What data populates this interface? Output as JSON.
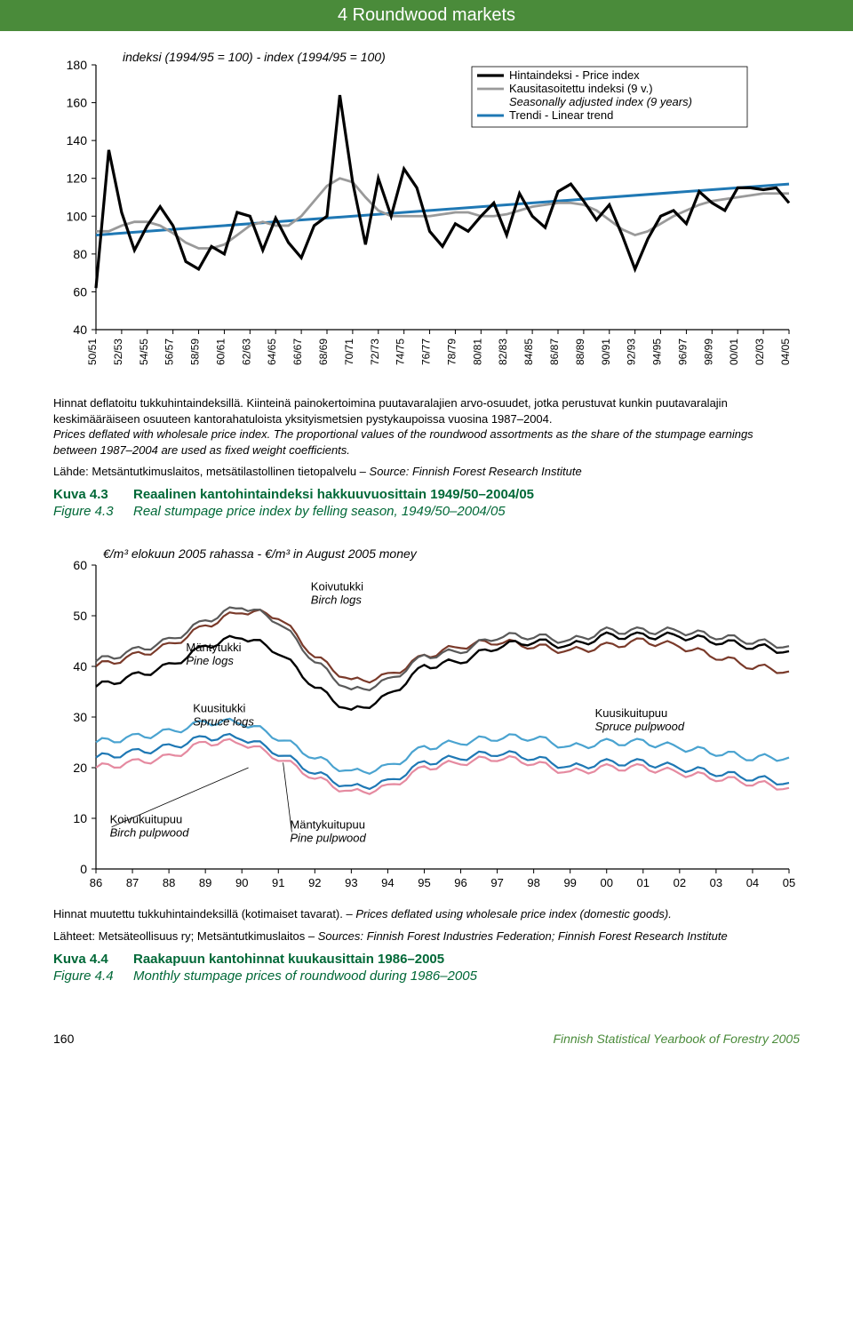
{
  "header": {
    "title": "4 Roundwood markets"
  },
  "chart1": {
    "type": "line",
    "index_label": "indeksi (1994/95 = 100) - index (1994/95 = 100)",
    "legend": {
      "price": "Hintaindeksi - Price index",
      "seasonal_fi": "Kausitasoitettu indeksi (9 v.)",
      "seasonal_en": "Seasonally adjusted index (9 years)",
      "trend": "Trendi - Linear trend"
    },
    "ylim": [
      40,
      180
    ],
    "ytick_step": 20,
    "background_color": "#ffffff",
    "xlabels": [
      "50/51",
      "52/53",
      "54/55",
      "56/57",
      "58/59",
      "60/61",
      "62/63",
      "64/65",
      "66/67",
      "68/69",
      "70/71",
      "72/73",
      "74/75",
      "76/77",
      "78/79",
      "80/81",
      "82/83",
      "84/85",
      "86/87",
      "88/89",
      "90/91",
      "92/93",
      "94/95",
      "96/97",
      "98/99",
      "00/01",
      "02/03",
      "04/05"
    ],
    "series": {
      "price": {
        "color": "#000000",
        "width": 3.2,
        "y": [
          62,
          135,
          102,
          82,
          95,
          105,
          95,
          76,
          72,
          84,
          80,
          102,
          100,
          82,
          99,
          86,
          78,
          95,
          100,
          164,
          118,
          85,
          120,
          100,
          125,
          115,
          92,
          84,
          96,
          92,
          100,
          107,
          90,
          112,
          100,
          94,
          113,
          117,
          108,
          98,
          106,
          90,
          72,
          88,
          100,
          103,
          96,
          113,
          107,
          103,
          115,
          115,
          114,
          115,
          107
        ]
      },
      "seasonal": {
        "color": "#9a9a9a",
        "width": 2.8,
        "y": [
          92,
          92,
          95,
          97,
          97,
          95,
          91,
          86,
          83,
          83,
          85,
          90,
          95,
          97,
          95,
          95,
          100,
          108,
          116,
          120,
          118,
          110,
          103,
          100,
          100,
          100,
          100,
          101,
          102,
          102,
          100,
          100,
          101,
          103,
          105,
          106,
          107,
          107,
          106,
          103,
          98,
          93,
          90,
          92,
          96,
          100,
          103,
          106,
          108,
          109,
          110,
          111,
          112,
          112,
          112
        ]
      },
      "trend": {
        "color": "#1f78b4",
        "width": 3,
        "y_start": 90,
        "y_end": 117
      }
    }
  },
  "notes1": {
    "fi": "Hinnat deflatoitu tukkuhintaindeksillä. Kiinteinä painokertoimina puutavaralajien arvo-osuudet, jotka perustuvat kunkin puutavaralajin keskimääräiseen osuuteen kantorahatuloista yksityismetsien pystykaupoissa vuosina 1987–2004.",
    "en": "Prices deflated with wholesale price index. The proportional values of the roundwood assortments as the share of the stumpage earnings between 1987–2004 are used as fixed weight coefficients."
  },
  "source1": {
    "fi": "Lähde: Metsäntutkimuslaitos, metsätilastollinen tietopalvelu – ",
    "en": "Source: Finnish Forest Research Institute"
  },
  "fig1": {
    "label_fi": "Kuva 4.3",
    "text_fi": "Reaalinen kantohintaindeksi hakkuuvuosittain 1949/50–2004/05",
    "label_en": "Figure 4.3",
    "text_en": "Real stumpage price index by felling season, 1949/50–2004/05"
  },
  "chart2": {
    "type": "line",
    "ylabel": "€/m³ elokuun 2005 rahassa - €/m³ in August 2005 money",
    "ylim": [
      0,
      60
    ],
    "ytick_step": 10,
    "xlabels": [
      "86",
      "87",
      "88",
      "89",
      "90",
      "91",
      "92",
      "93",
      "94",
      "95",
      "96",
      "97",
      "98",
      "99",
      "00",
      "01",
      "02",
      "03",
      "04",
      "05"
    ],
    "background_color": "#ffffff",
    "inline_labels": {
      "pine_log": {
        "fi": "Mäntytukki",
        "en": "Pine logs"
      },
      "spruce_log": {
        "fi": "Kuusitukki",
        "en": "Spruce logs"
      },
      "birch_log": {
        "fi": "Koivutukki",
        "en": "Birch logs"
      },
      "spruce_pulp": {
        "fi": "Kuusikuitupuu",
        "en": "Spruce pulpwood"
      },
      "pine_pulp": {
        "fi": "Mäntykuitupuu",
        "en": "Pine pulpwood"
      },
      "birch_pulp": {
        "fi": "Koivukuitupuu",
        "en": "Birch pulpwood"
      }
    },
    "series": {
      "birch_log": {
        "color": "#7a3a2a",
        "width": 2.2,
        "y": [
          40,
          42,
          44,
          48,
          51,
          50,
          42,
          37,
          38,
          42,
          44,
          45,
          44,
          43,
          44,
          45,
          44,
          42,
          40,
          39
        ]
      },
      "pine_log": {
        "color": "#5a5a5a",
        "width": 2.2,
        "y": [
          41,
          43,
          45,
          49,
          52,
          49,
          41,
          35,
          37,
          42,
          43,
          46,
          46,
          45,
          47,
          47,
          47,
          46,
          45,
          44
        ]
      },
      "spruce_log": {
        "color": "#000000",
        "width": 2.4,
        "y": [
          36,
          38,
          40,
          44,
          46,
          43,
          36,
          31,
          34,
          40,
          41,
          44,
          45,
          44,
          46,
          46,
          46,
          45,
          44,
          43
        ]
      },
      "spruce_pulp": {
        "color": "#4aa3d0",
        "width": 2.2,
        "y": [
          25,
          26,
          27,
          29,
          29,
          26,
          22,
          19,
          20,
          24,
          25,
          26,
          26,
          24,
          25,
          25,
          24,
          23,
          22,
          22
        ]
      },
      "pine_pulp": {
        "color": "#1f78b4",
        "width": 2.2,
        "y": [
          22,
          23,
          24,
          26,
          26,
          23,
          19,
          16,
          17,
          21,
          22,
          23,
          22,
          20,
          21,
          21,
          20,
          19,
          18,
          17
        ]
      },
      "birch_pulp": {
        "color": "#e58aa0",
        "width": 2.2,
        "y": [
          20,
          21,
          22,
          25,
          25,
          22,
          18,
          15,
          16,
          20,
          21,
          22,
          21,
          19,
          20,
          20,
          19,
          18,
          17,
          16
        ]
      }
    }
  },
  "notes2": {
    "fi": "Hinnat muutettu tukkuhintaindeksillä (kotimaiset tavarat). – ",
    "en": "Prices deflated using wholesale price index (domestic goods)."
  },
  "source2": {
    "fi": "Lähteet: Metsäteollisuus ry; Metsäntutkimuslaitos – ",
    "en": "Sources: Finnish Forest Industries Federation; Finnish Forest Research Institute"
  },
  "fig2": {
    "label_fi": "Kuva 4.4",
    "text_fi": "Raakapuun kantohinnat kuukausittain 1986–2005",
    "label_en": "Figure 4.4",
    "text_en": "Monthly stumpage prices of roundwood during 1986–2005"
  },
  "footer": {
    "page": "160",
    "yearbook": "Finnish Statistical Yearbook of Forestry 2005"
  }
}
